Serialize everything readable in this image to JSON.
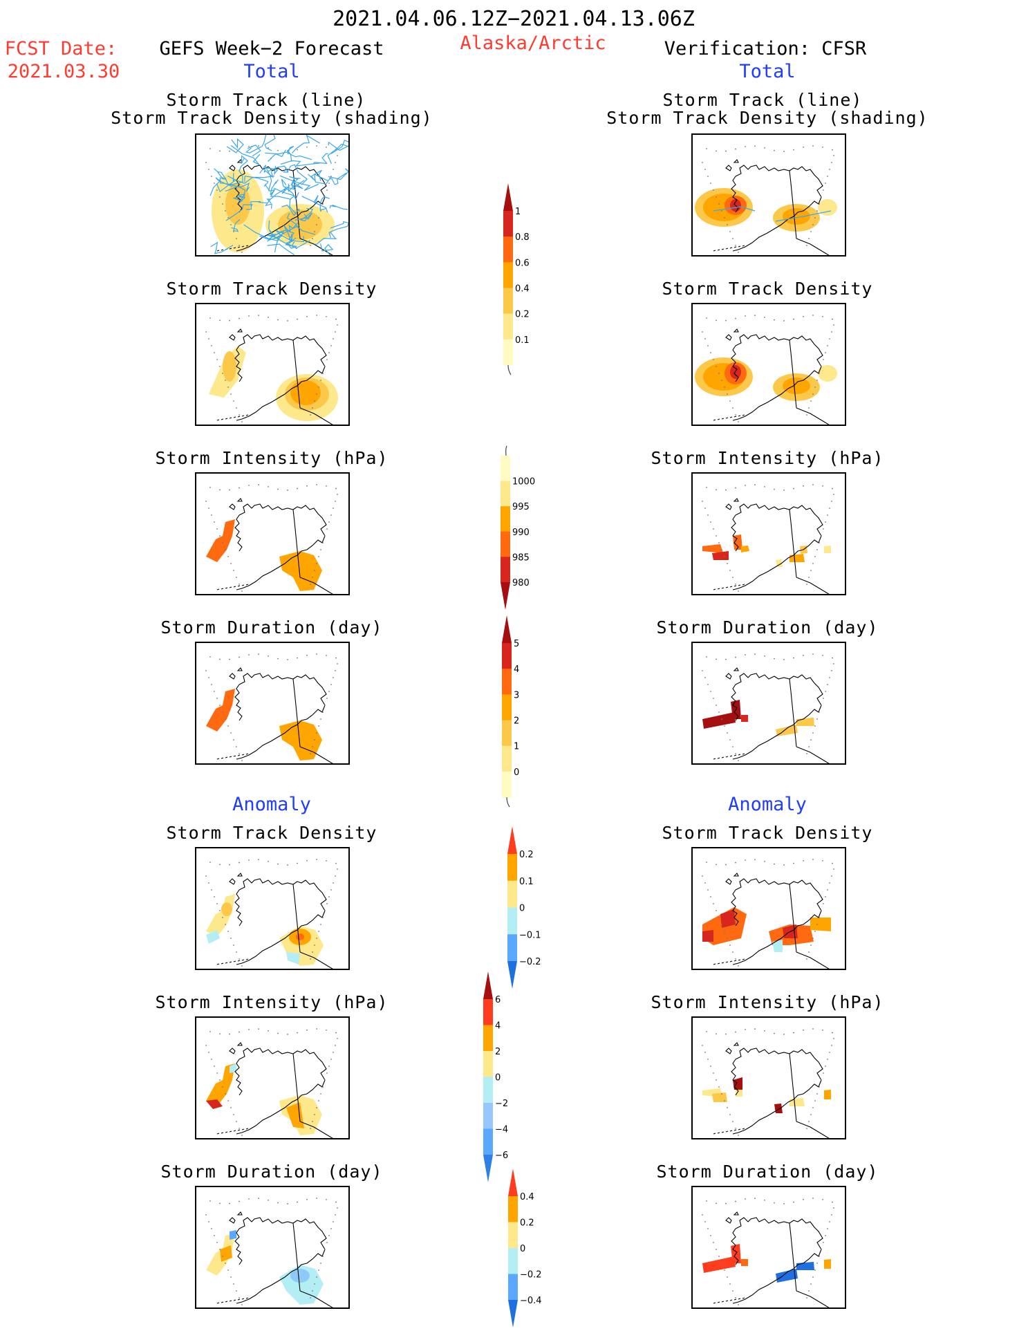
{
  "header": {
    "period": "2021.04.06.12Z−2021.04.13.06Z",
    "fcst_label": "FCST Date:",
    "fcst_date": "2021.03.30",
    "left_title": "GEFS Week−2 Forecast",
    "region": "Alaska/Arctic",
    "right_title": "Verification: CFSR",
    "total": "Total",
    "anomaly": "Anomaly"
  },
  "panel_titles": {
    "track_line": "Storm Track (line)",
    "track_shading": "Storm Track Density (shading)",
    "density": "Storm Track Density",
    "intensity": "Storm Intensity (hPa)",
    "duration": "Storm Duration (day)"
  },
  "colorbars": {
    "density_total": {
      "labels": [
        "1",
        "0.8",
        "0.6",
        "0.4",
        "0.2",
        "0.1"
      ],
      "colors": [
        "#a50f0f",
        "#d7261e",
        "#ff6a10",
        "#ffa500",
        "#fcc84a",
        "#fde98c",
        "#fffbc2"
      ]
    },
    "intensity_total": {
      "labels": [
        "1000",
        "995",
        "990",
        "985",
        "980"
      ],
      "colors": [
        "#fffbc2",
        "#fde98c",
        "#ffa500",
        "#ff6a10",
        "#d7261e",
        "#a50f0f"
      ]
    },
    "duration_total": {
      "labels": [
        "5",
        "4",
        "3",
        "2",
        "1",
        "0"
      ],
      "colors": [
        "#a50f0f",
        "#d7261e",
        "#ff6a10",
        "#ffa500",
        "#fcc84a",
        "#fde98c",
        "#fffbc2"
      ]
    },
    "density_anom": {
      "labels": [
        "0.2",
        "0.1",
        "0",
        "−0.1",
        "−0.2"
      ],
      "colors": [
        "#ff3c1e",
        "#ffa500",
        "#fde98c",
        "#b4eef5",
        "#5aa8ff",
        "#1f6fe0"
      ]
    },
    "intensity_anom": {
      "labels": [
        "6",
        "4",
        "2",
        "0",
        "−2",
        "−4",
        "−6"
      ],
      "colors": [
        "#a50f0f",
        "#ff3c1e",
        "#ffa500",
        "#fde98c",
        "#b4eef5",
        "#96c8ff",
        "#5aa8ff",
        "#2f7fe8"
      ]
    },
    "duration_anom": {
      "labels": [
        "0.4",
        "0.2",
        "0",
        "−0.2",
        "−0.4"
      ],
      "colors": [
        "#ff3c1e",
        "#ffa500",
        "#fde98c",
        "#b4eef5",
        "#5aa8ff",
        "#1f6fe0"
      ]
    }
  }
}
